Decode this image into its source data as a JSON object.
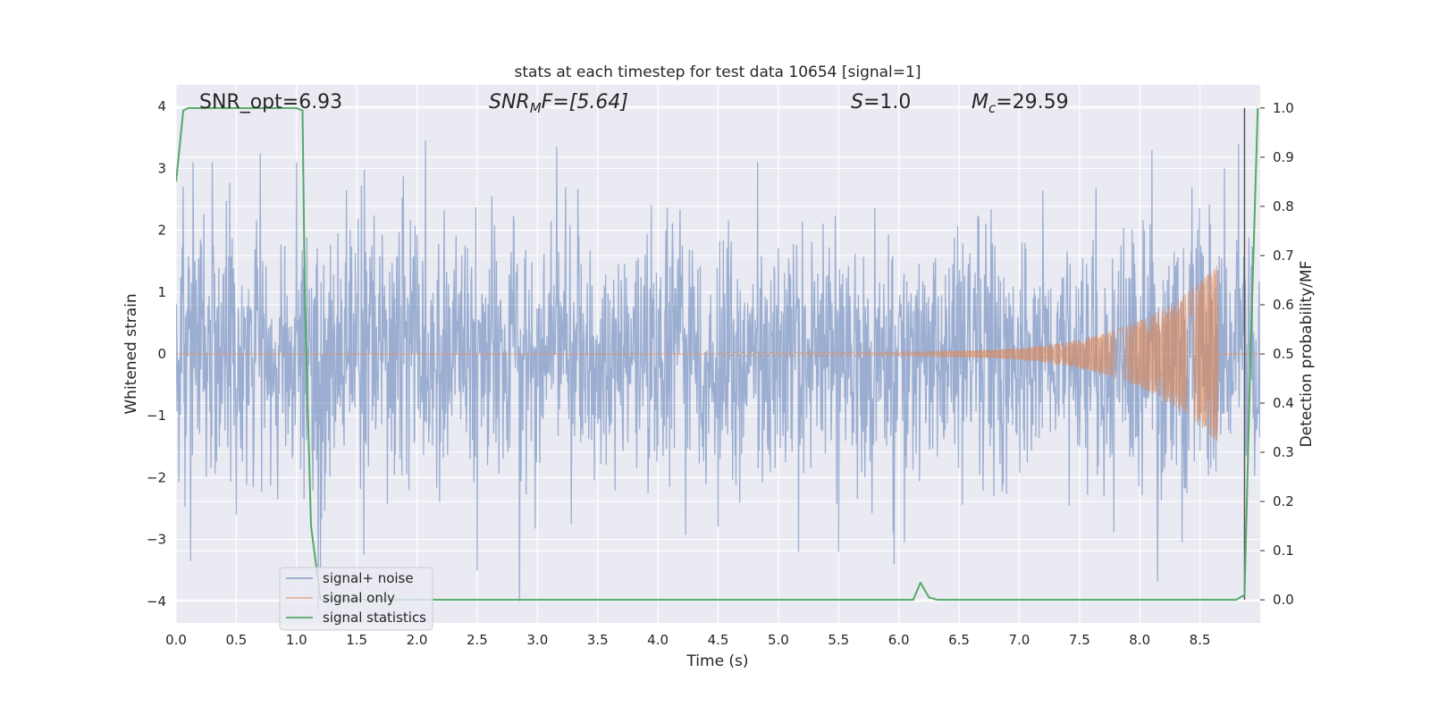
{
  "chart_data": {
    "type": "line",
    "title": "stats at each timestep for test data 10654 [signal=1]",
    "xlabel": "Time (s)",
    "ylabel": "Whitened strain",
    "y2label": "Detection probability/MF",
    "xlim": [
      0.0,
      9.0
    ],
    "ylim": [
      -4.35,
      4.35
    ],
    "y2lim": [
      -0.047,
      1.047
    ],
    "xticks": [
      "0.0",
      "0.5",
      "1.0",
      "1.5",
      "2.0",
      "2.5",
      "3.0",
      "3.5",
      "4.0",
      "4.5",
      "5.0",
      "5.5",
      "6.0",
      "6.5",
      "7.0",
      "7.5",
      "8.0",
      "8.5"
    ],
    "yticks": [
      "4",
      "3",
      "2",
      "1",
      "0",
      "−1",
      "−2",
      "−3",
      "−4"
    ],
    "y2ticks": [
      "1.0",
      "0.9",
      "0.8",
      "0.7",
      "0.6",
      "0.5",
      "0.4",
      "0.3",
      "0.2",
      "0.1",
      "0.0"
    ],
    "grid": true,
    "legend_position": "lower-left",
    "annotations": {
      "snr_opt": "SNR_opt=6.93",
      "snr_mf_base": "SNR",
      "snr_mf_sub": "M",
      "snr_mf_rest": "F=[5.64]",
      "s_base": "S",
      "s_rest": "=1.0",
      "mc_base": "M",
      "mc_sub": "c",
      "mc_rest": "=29.59"
    },
    "series": [
      {
        "name": "signal+ noise",
        "color": "#4c72b0",
        "axis": "left",
        "sample_rate": 256,
        "noise_std": 1.0,
        "peaks": [
          {
            "x": 0.06,
            "y": 2.7
          },
          {
            "x": 0.14,
            "y": 3.1
          },
          {
            "x": 0.12,
            "y": -3.35
          },
          {
            "x": 0.3,
            "y": 3.1
          },
          {
            "x": 0.5,
            "y": -2.6
          },
          {
            "x": 1.0,
            "y": 3.1
          },
          {
            "x": 1.2,
            "y": -3.45
          },
          {
            "x": 1.56,
            "y": -3.25
          },
          {
            "x": 2.07,
            "y": 3.45
          },
          {
            "x": 2.5,
            "y": -3.5
          },
          {
            "x": 2.85,
            "y": -4.0
          },
          {
            "x": 3.16,
            "y": 3.35
          },
          {
            "x": 5.5,
            "y": -3.2
          },
          {
            "x": 5.96,
            "y": -3.4
          },
          {
            "x": 8.1,
            "y": 3.3
          },
          {
            "x": 8.35,
            "y": -3.05
          },
          {
            "x": 8.82,
            "y": 3.4
          }
        ]
      },
      {
        "name": "signal only",
        "color": "#dd8452",
        "axis": "left",
        "chirp": {
          "start": 4.5,
          "end": 8.65,
          "f0": 30,
          "f1": 260,
          "amp0": 0.03,
          "amp_peak": 1.45
        }
      },
      {
        "name": "signal statistics",
        "color": "#55a868",
        "axis": "right",
        "x": [
          0.0,
          0.06,
          0.1,
          0.2,
          0.5,
          1.0,
          1.05,
          1.07,
          1.12,
          1.2,
          2.0,
          4.0,
          6.0,
          6.12,
          6.18,
          6.25,
          6.32,
          7.0,
          8.0,
          8.8,
          8.87,
          8.92,
          8.98
        ],
        "y": [
          0.85,
          0.995,
          1.0,
          1.0,
          1.0,
          1.0,
          0.995,
          0.6,
          0.15,
          0.0,
          0.0,
          0.0,
          0.0,
          0.0,
          0.035,
          0.005,
          0.0,
          0.0,
          0.0,
          0.0,
          0.01,
          0.5,
          1.0
        ]
      }
    ],
    "vertical_marker": {
      "x": 8.87,
      "color": "#555555",
      "y2_top": 1.0
    }
  }
}
